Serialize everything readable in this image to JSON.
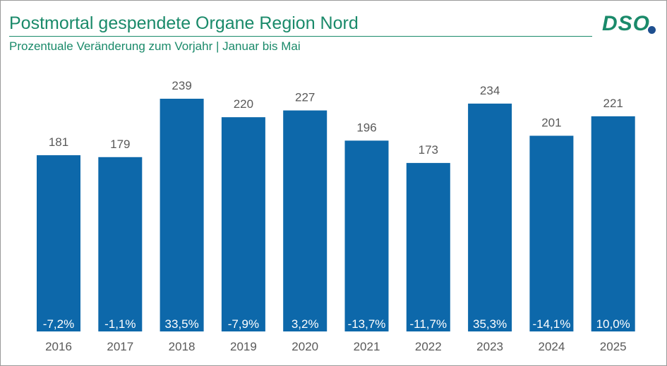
{
  "header": {
    "title": "Postmortal gespendete Organe Region Nord",
    "subtitle": "Prozentuale Veränderung zum Vorjahr | Januar bis Mai",
    "logo_text": "DSO"
  },
  "colors": {
    "bar": "#0d68aa",
    "accent": "#1a8a6a",
    "logo_dot": "#1e4f8f",
    "label": "#595959"
  },
  "chart_data": {
    "type": "bar",
    "categories": [
      "2016",
      "2017",
      "2018",
      "2019",
      "2020",
      "2021",
      "2022",
      "2023",
      "2024",
      "2025"
    ],
    "values": [
      181,
      179,
      239,
      220,
      227,
      196,
      173,
      234,
      201,
      221
    ],
    "change_labels": [
      "-7,2%",
      "-1,1%",
      "33,5%",
      "-7,9%",
      "3,2%",
      "-13,7%",
      "-11,7%",
      "35,3%",
      "-14,1%",
      "10,0%"
    ],
    "ylim": [
      0,
      239
    ],
    "grid": false,
    "legend": "none"
  }
}
